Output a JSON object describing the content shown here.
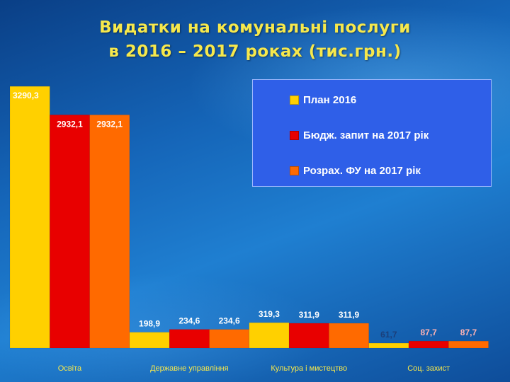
{
  "title_line1": "Видатки на комунальні послуги",
  "title_line2": "в 2016 – 2017 роках (тис.грн.)",
  "chart_data": {
    "type": "bar",
    "categories": [
      "Освіта",
      "Державне управління",
      "Культура і мистецтво",
      "Соц. захист"
    ],
    "series": [
      {
        "name": "План 2016",
        "values": [
          3290.3,
          198.9,
          319.3,
          61.7
        ],
        "labels": [
          "3290,3",
          "198,9",
          "319,3",
          "61,7"
        ],
        "color": "#ffd000"
      },
      {
        "name": "Бюдж. запит на 2017 рік",
        "values": [
          2932.1,
          234.6,
          311.9,
          87.7
        ],
        "labels": [
          "2932,1",
          "234,6",
          "311,9",
          "87,7"
        ],
        "color": "#e80000"
      },
      {
        "name": "Розрах. ФУ на 2017 рік",
        "values": [
          2932.1,
          234.6,
          311.9,
          87.7
        ],
        "labels": [
          "2932,1",
          "234,6",
          "311,9",
          "87,7"
        ],
        "color": "#ff6a00"
      }
    ],
    "ylim": [
      0,
      3300
    ],
    "grid": false,
    "legend_position": "top-right",
    "label_colors": {
      "light": "#ffffff",
      "dark": "#1b3f7a",
      "red": "#ffb3b3"
    }
  }
}
